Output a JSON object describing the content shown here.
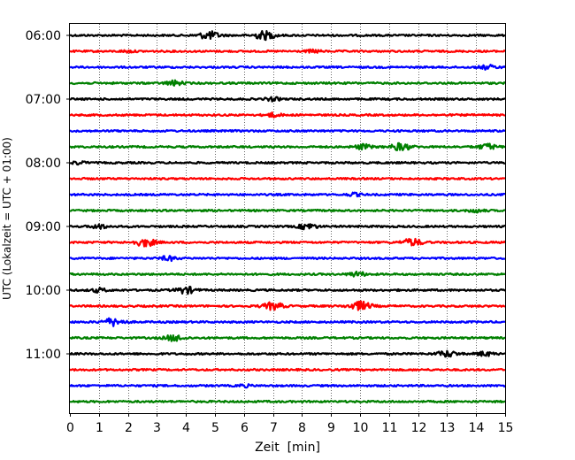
{
  "chart_data": {
    "type": "line",
    "title": "",
    "xlabel": "Zeit  [min]",
    "ylabel": "UTC (Lokalzeit = UTC + 01:00)",
    "xlim": [
      0,
      15
    ],
    "x_ticks": [
      "0",
      "1",
      "2",
      "3",
      "4",
      "5",
      "6",
      "7",
      "8",
      "9",
      "10",
      "11",
      "12",
      "13",
      "14",
      "15"
    ],
    "y_tick_labels": [
      "06:00",
      "07:00",
      "08:00",
      "09:00",
      "10:00",
      "11:00"
    ],
    "traces_per_hour": 4,
    "trace_minutes": 15,
    "grid": "vertical-dotted",
    "color_cycle": [
      "#000000",
      "#ff0000",
      "#0000ff",
      "#008000"
    ],
    "traces": [
      {
        "start": "06:00",
        "color": "#000000",
        "events": [
          [
            4.8,
            1.6
          ],
          [
            6.7,
            1.7
          ]
        ]
      },
      {
        "start": "06:15",
        "color": "#ff0000",
        "events": [
          [
            2.0,
            0.4
          ],
          [
            8.4,
            0.6
          ]
        ]
      },
      {
        "start": "06:30",
        "color": "#0000ff",
        "events": [
          [
            14.4,
            0.9
          ]
        ]
      },
      {
        "start": "06:45",
        "color": "#008000",
        "events": [
          [
            3.6,
            1.0
          ]
        ]
      },
      {
        "start": "07:00",
        "color": "#000000",
        "events": [
          [
            7.0,
            0.7
          ]
        ]
      },
      {
        "start": "07:15",
        "color": "#ff0000",
        "events": [
          [
            7.0,
            0.8
          ]
        ]
      },
      {
        "start": "07:30",
        "color": "#0000ff",
        "events": []
      },
      {
        "start": "07:45",
        "color": "#008000",
        "events": [
          [
            10.1,
            1.0
          ],
          [
            11.4,
            1.5
          ],
          [
            14.4,
            1.2
          ]
        ]
      },
      {
        "start": "08:00",
        "color": "#000000",
        "events": [
          [
            0.3,
            0.6
          ]
        ]
      },
      {
        "start": "08:15",
        "color": "#ff0000",
        "events": []
      },
      {
        "start": "08:30",
        "color": "#0000ff",
        "events": [
          [
            9.8,
            0.6
          ]
        ]
      },
      {
        "start": "08:45",
        "color": "#008000",
        "events": [
          [
            14.0,
            0.7
          ]
        ]
      },
      {
        "start": "09:00",
        "color": "#000000",
        "events": [
          [
            1.0,
            0.9
          ],
          [
            8.2,
            1.2
          ]
        ]
      },
      {
        "start": "09:15",
        "color": "#ff0000",
        "events": [
          [
            2.6,
            1.6
          ],
          [
            11.8,
            1.5
          ]
        ]
      },
      {
        "start": "09:30",
        "color": "#0000ff",
        "events": [
          [
            3.4,
            0.9
          ]
        ]
      },
      {
        "start": "09:45",
        "color": "#008000",
        "events": [
          [
            9.9,
            1.0
          ]
        ]
      },
      {
        "start": "10:00",
        "color": "#000000",
        "events": [
          [
            1.0,
            0.8
          ],
          [
            4.0,
            1.4
          ]
        ]
      },
      {
        "start": "10:15",
        "color": "#ff0000",
        "events": [
          [
            7.0,
            1.5
          ],
          [
            10.0,
            1.8
          ]
        ]
      },
      {
        "start": "10:30",
        "color": "#0000ff",
        "events": [
          [
            1.5,
            1.6
          ]
        ]
      },
      {
        "start": "10:45",
        "color": "#008000",
        "events": [
          [
            3.6,
            1.3
          ]
        ]
      },
      {
        "start": "11:00",
        "color": "#000000",
        "events": [
          [
            13.0,
            1.3
          ],
          [
            14.3,
            0.9
          ]
        ]
      },
      {
        "start": "11:15",
        "color": "#ff0000",
        "events": []
      },
      {
        "start": "11:30",
        "color": "#0000ff",
        "events": [
          [
            6.0,
            0.5
          ]
        ]
      },
      {
        "start": "11:45",
        "color": "#008000",
        "events": []
      }
    ]
  }
}
